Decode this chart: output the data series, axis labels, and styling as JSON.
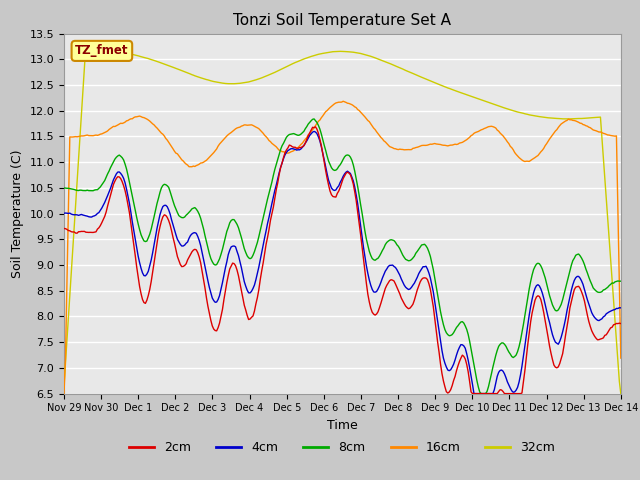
{
  "title": "Tonzi Soil Temperature Set A",
  "xlabel": "Time",
  "ylabel": "Soil Temperature (C)",
  "ylim": [
    6.5,
    13.5
  ],
  "annotation_text": "TZ_fmet",
  "annotation_color": "#8B0000",
  "annotation_bg": "#FFFF99",
  "annotation_border": "#CC8800",
  "legend_labels": [
    "2cm",
    "4cm",
    "8cm",
    "16cm",
    "32cm"
  ],
  "line_colors": [
    "#DD0000",
    "#0000CC",
    "#00AA00",
    "#FF8800",
    "#CCCC00"
  ],
  "fig_bg": "#C8C8C8",
  "plot_bg": "#E8E8E8",
  "grid_color": "#FFFFFF",
  "day_labels": [
    "Nov 29",
    "Nov 30",
    "Dec 1",
    "Dec 2",
    "Dec 3",
    "Dec 4",
    "Dec 5",
    "Dec 6",
    "Dec 7",
    "Dec 8",
    "Dec 9",
    "Dec 10",
    "Dec 11",
    "Dec 12",
    "Dec 13",
    "Dec 14"
  ],
  "yticks": [
    6.5,
    7.0,
    7.5,
    8.0,
    8.5,
    9.0,
    9.5,
    10.0,
    10.5,
    11.0,
    11.5,
    12.0,
    12.5,
    13.0,
    13.5
  ]
}
